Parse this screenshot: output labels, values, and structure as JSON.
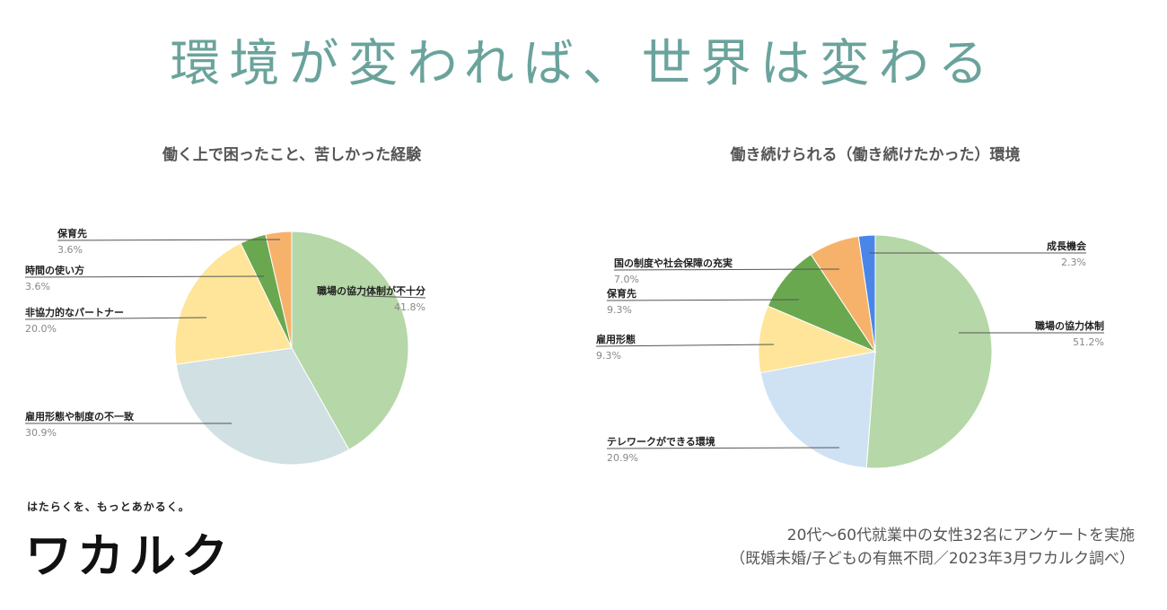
{
  "headline": "環境が変われば、世界は変わる",
  "brand": {
    "tagline": "はたらくを、もっとあかるく。",
    "logo": "ワカルク"
  },
  "survey_note": {
    "line1": "20代〜60代就業中の女性32名にアンケートを実施",
    "line2": "（既婚未婚/子どもの有無不問／2023年3月ワカルク調べ）"
  },
  "chart_data": [
    {
      "type": "pie",
      "title": "働く上で困ったこと、苦しかった経験",
      "slices": [
        {
          "label": "職場の協力体制が不十分",
          "value": 41.8,
          "display": "41.8%",
          "color": "#b6d7a8"
        },
        {
          "label": "雇用形態や制度の不一致",
          "value": 30.9,
          "display": "30.9%",
          "color": "#d0e0e3"
        },
        {
          "label": "非協力的なパートナー",
          "value": 20.0,
          "display": "20.0%",
          "color": "#ffe599"
        },
        {
          "label": "時間の使い方",
          "value": 3.6,
          "display": "3.6%",
          "color": "#6aa84f"
        },
        {
          "label": "保育先",
          "value": 3.6,
          "display": "3.6%",
          "color": "#f6b26b"
        }
      ]
    },
    {
      "type": "pie",
      "title": "働き続けられる（働き続けたかった）環境",
      "slices": [
        {
          "label": "職場の協力体制",
          "value": 51.2,
          "display": "51.2%",
          "color": "#b6d7a8"
        },
        {
          "label": "テレワークができる環境",
          "value": 20.9,
          "display": "20.9%",
          "color": "#cfe2f3"
        },
        {
          "label": "雇用形態",
          "value": 9.3,
          "display": "9.3%",
          "color": "#ffe599"
        },
        {
          "label": "保育先",
          "value": 9.3,
          "display": "9.3%",
          "color": "#6aa84f"
        },
        {
          "label": "国の制度や社会保障の充実",
          "value": 7.0,
          "display": "7.0%",
          "color": "#f6b26b"
        },
        {
          "label": "成長機会",
          "value": 2.3,
          "display": "2.3%",
          "color": "#4a86e8"
        }
      ]
    }
  ]
}
